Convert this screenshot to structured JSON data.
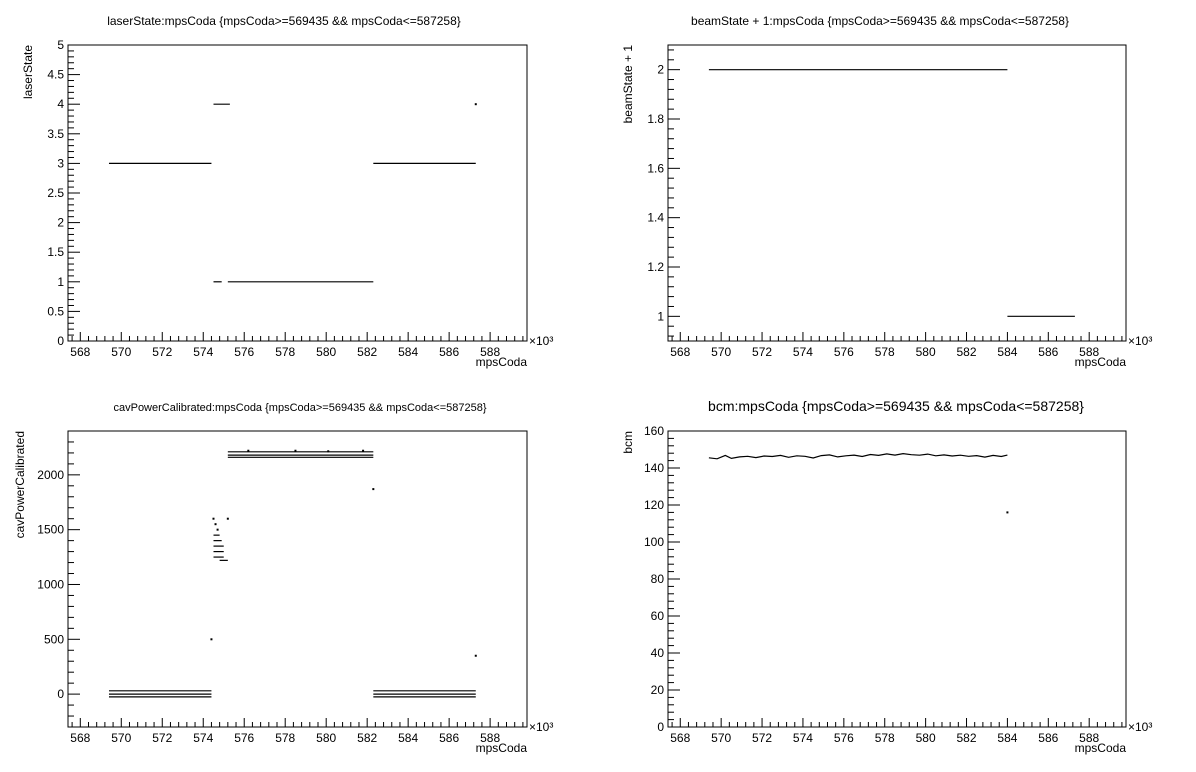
{
  "chart_data": [
    {
      "type": "scatter",
      "title": "laserState:mpsCoda {mpsCoda>=569435 && mpsCoda<=587258}",
      "xlabel": "mpsCoda",
      "ylabel": "laserState",
      "x_multiplier": "×10³",
      "xlim": [
        567.4,
        589.8
      ],
      "ylim": [
        0,
        5
      ],
      "xticks": [
        568,
        570,
        572,
        574,
        576,
        578,
        580,
        582,
        584,
        586,
        588
      ],
      "yticks": [
        0,
        0.5,
        1,
        1.5,
        2,
        2.5,
        3,
        3.5,
        4,
        4.5,
        5
      ],
      "ytick_labels": [
        "0",
        "0.5",
        "1",
        "1.5",
        "2",
        "2.5",
        "3",
        "3.5",
        "4",
        "4.5",
        "5"
      ],
      "segments": [
        {
          "x0": 569.4,
          "x1": 574.4,
          "y": 3
        },
        {
          "x0": 574.5,
          "x1": 575.3,
          "y": 4
        },
        {
          "x0": 574.5,
          "x1": 574.9,
          "y": 1
        },
        {
          "x0": 575.2,
          "x1": 582.3,
          "y": 1
        },
        {
          "x0": 582.3,
          "x1": 587.3,
          "y": 3
        }
      ],
      "points": [
        {
          "x": 587.3,
          "y": 4
        }
      ]
    },
    {
      "type": "scatter",
      "title": "beamState + 1:mpsCoda {mpsCoda>=569435 && mpsCoda<=587258}",
      "xlabel": "mpsCoda",
      "ylabel": "beamState + 1",
      "x_multiplier": "×10³",
      "xlim": [
        567.4,
        589.8
      ],
      "ylim": [
        0.9,
        2.1
      ],
      "xticks": [
        568,
        570,
        572,
        574,
        576,
        578,
        580,
        582,
        584,
        586,
        588
      ],
      "yticks": [
        1,
        1.2,
        1.4,
        1.6,
        1.8,
        2
      ],
      "ytick_labels": [
        "1",
        "1.2",
        "1.4",
        "1.6",
        "1.8",
        "2"
      ],
      "segments": [
        {
          "x0": 569.4,
          "x1": 584.0,
          "y": 2
        },
        {
          "x0": 584.0,
          "x1": 587.3,
          "y": 1
        }
      ],
      "points": []
    },
    {
      "type": "scatter",
      "title": "cavPowerCalibrated:mpsCoda {mpsCoda>=569435 && mpsCoda<=587258}",
      "xlabel": "mpsCoda",
      "ylabel": "cavPowerCalibrated",
      "x_multiplier": "×10³",
      "xlim": [
        567.4,
        589.8
      ],
      "ylim": [
        -300,
        2400
      ],
      "xticks": [
        568,
        570,
        572,
        574,
        576,
        578,
        580,
        582,
        584,
        586,
        588
      ],
      "yticks": [
        0,
        500,
        1000,
        1500,
        2000
      ],
      "ytick_labels": [
        "0",
        "500",
        "1000",
        "1500",
        "2000"
      ],
      "segments": [
        {
          "x0": 569.4,
          "x1": 574.4,
          "y": 30
        },
        {
          "x0": 569.4,
          "x1": 574.4,
          "y": 0
        },
        {
          "x0": 569.4,
          "x1": 574.4,
          "y": -25
        },
        {
          "x0": 575.2,
          "x1": 582.3,
          "y": 2210
        },
        {
          "x0": 575.2,
          "x1": 582.3,
          "y": 2180
        },
        {
          "x0": 575.2,
          "x1": 582.3,
          "y": 2160
        },
        {
          "x0": 582.3,
          "x1": 587.3,
          "y": 30
        },
        {
          "x0": 582.3,
          "x1": 587.3,
          "y": 0
        },
        {
          "x0": 582.3,
          "x1": 587.3,
          "y": -25
        },
        {
          "x0": 574.5,
          "x1": 575.0,
          "y": 1250
        },
        {
          "x0": 574.5,
          "x1": 575.0,
          "y": 1300
        },
        {
          "x0": 574.5,
          "x1": 575.0,
          "y": 1350
        },
        {
          "x0": 574.5,
          "x1": 574.9,
          "y": 1400
        },
        {
          "x0": 574.5,
          "x1": 574.8,
          "y": 1450
        },
        {
          "x0": 574.8,
          "x1": 575.2,
          "y": 1220
        }
      ],
      "points": [
        {
          "x": 574.4,
          "y": 500
        },
        {
          "x": 574.5,
          "y": 1600
        },
        {
          "x": 574.6,
          "y": 1550
        },
        {
          "x": 574.7,
          "y": 1500
        },
        {
          "x": 575.2,
          "y": 1600
        },
        {
          "x": 582.3,
          "y": 1870
        },
        {
          "x": 587.3,
          "y": 350
        },
        {
          "x": 576.2,
          "y": 2220
        },
        {
          "x": 578.5,
          "y": 2220
        },
        {
          "x": 580.1,
          "y": 2215
        },
        {
          "x": 581.8,
          "y": 2220
        }
      ]
    },
    {
      "type": "line",
      "title": "bcm:mpsCoda {mpsCoda>=569435 && mpsCoda<=587258}",
      "xlabel": "mpsCoda",
      "ylabel": "bcm",
      "x_multiplier": "×10³",
      "xlim": [
        567.4,
        589.8
      ],
      "ylim": [
        0,
        160
      ],
      "xticks": [
        568,
        570,
        572,
        574,
        576,
        578,
        580,
        582,
        584,
        586,
        588
      ],
      "yticks": [
        0,
        20,
        40,
        60,
        80,
        100,
        120,
        140,
        160
      ],
      "ytick_labels": [
        "0",
        "20",
        "40",
        "60",
        "80",
        "100",
        "120",
        "140",
        "160"
      ],
      "series": [
        {
          "x": [
            569.4,
            569.8,
            570.2,
            570.5,
            570.9,
            571.3,
            571.7,
            572.1,
            572.5,
            572.9,
            573.3,
            573.7,
            574.1,
            574.5,
            574.9,
            575.3,
            575.7,
            576.1,
            576.5,
            576.9,
            577.3,
            577.7,
            578.1,
            578.5,
            578.9,
            579.3,
            579.7,
            580.1,
            580.5,
            580.9,
            581.3,
            581.7,
            582.1,
            582.5,
            582.9,
            583.3,
            583.7,
            584.0
          ],
          "y": [
            145.5,
            145.0,
            146.8,
            145.2,
            146.0,
            146.3,
            145.6,
            146.5,
            146.2,
            146.8,
            145.8,
            146.6,
            146.3,
            145.4,
            146.7,
            147.1,
            146.0,
            146.6,
            147.0,
            146.2,
            147.3,
            146.8,
            147.6,
            147.0,
            147.8,
            147.2,
            146.9,
            147.5,
            146.6,
            147.1,
            146.5,
            146.9,
            146.3,
            146.7,
            145.9,
            146.8,
            146.2,
            147.0
          ]
        }
      ],
      "points": [
        {
          "x": 584.0,
          "y": 116
        }
      ]
    }
  ]
}
